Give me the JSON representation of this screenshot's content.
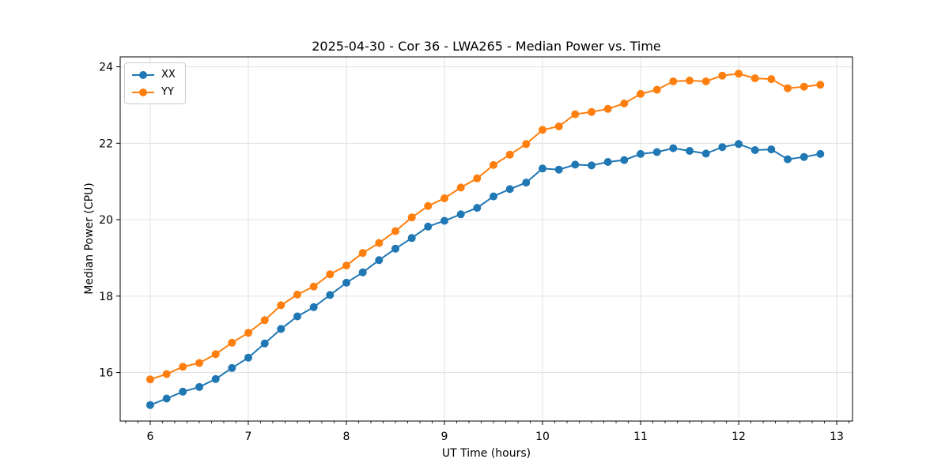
{
  "chart_data": {
    "type": "line",
    "title": "2025-04-30 - Cor 36 - LWA265 - Median Power vs. Time",
    "xlabel": "UT Time (hours)",
    "ylabel": "Median Power (CPU)",
    "x": [
      6.0,
      6.167,
      6.333,
      6.5,
      6.667,
      6.833,
      7.0,
      7.167,
      7.333,
      7.5,
      7.667,
      7.833,
      8.0,
      8.167,
      8.333,
      8.5,
      8.667,
      8.833,
      9.0,
      9.167,
      9.333,
      9.5,
      9.667,
      9.833,
      10.0,
      10.167,
      10.333,
      10.5,
      10.667,
      10.833,
      11.0,
      11.167,
      11.333,
      11.5,
      11.667,
      11.833,
      12.0,
      12.167,
      12.333,
      12.5,
      12.667,
      12.833
    ],
    "series": [
      {
        "name": "XX",
        "color": "#1f77b4",
        "values": [
          15.15,
          15.32,
          15.5,
          15.62,
          15.83,
          16.12,
          16.39,
          16.76,
          17.14,
          17.47,
          17.71,
          18.03,
          18.35,
          18.62,
          18.94,
          19.24,
          19.52,
          19.82,
          19.97,
          20.14,
          20.31,
          20.61,
          20.8,
          20.97,
          21.34,
          21.31,
          21.44,
          21.42,
          21.51,
          21.56,
          21.72,
          21.77,
          21.87,
          21.8,
          21.73,
          21.9,
          21.98,
          21.82,
          21.84,
          21.58,
          21.64,
          21.72
        ]
      },
      {
        "name": "YY",
        "color": "#ff7f0e",
        "values": [
          15.82,
          15.96,
          16.15,
          16.25,
          16.48,
          16.78,
          17.04,
          17.37,
          17.76,
          18.04,
          18.25,
          18.57,
          18.8,
          19.13,
          19.39,
          19.7,
          20.06,
          20.36,
          20.56,
          20.84,
          21.08,
          21.43,
          21.7,
          21.98,
          22.35,
          22.44,
          22.76,
          22.82,
          22.9,
          23.04,
          23.29,
          23.4,
          23.62,
          23.64,
          23.62,
          23.77,
          23.82,
          23.7,
          23.68,
          23.44,
          23.48,
          23.53
        ]
      }
    ],
    "xlim": [
      5.694,
      13.161
    ],
    "ylim": [
      14.73,
      24.26
    ],
    "xticks": [
      6,
      7,
      8,
      9,
      10,
      11,
      12,
      13
    ],
    "yticks": [
      16,
      18,
      20,
      22,
      24
    ],
    "x_minor_step": 0.125,
    "grid": true,
    "legend_position": "upper left",
    "grid_color": "#e0e0e0",
    "spine_color": "#000000",
    "text_color": "#000000"
  }
}
